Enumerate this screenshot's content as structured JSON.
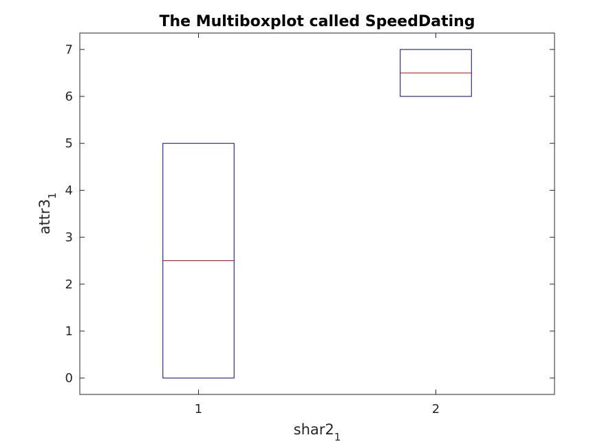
{
  "chart_data": {
    "type": "boxplot",
    "title": "The Multiboxplot called SpeedDating",
    "xlabel": {
      "base": "shar2",
      "subscript": "1"
    },
    "ylabel": {
      "base": "attr3",
      "subscript": "1"
    },
    "xlim": [
      0.5,
      2.5
    ],
    "ylim": [
      -0.35,
      7.35
    ],
    "x_ticks": [
      1,
      2
    ],
    "y_ticks": [
      0,
      1,
      2,
      3,
      4,
      5,
      6,
      7
    ],
    "grid": false,
    "box_color": "#00008b",
    "median_color": "#cc0000",
    "boxes": [
      {
        "x": 1,
        "q1": 0,
        "median": 2.5,
        "q3": 5
      },
      {
        "x": 2,
        "q1": 6,
        "median": 6.5,
        "q3": 7
      }
    ]
  }
}
